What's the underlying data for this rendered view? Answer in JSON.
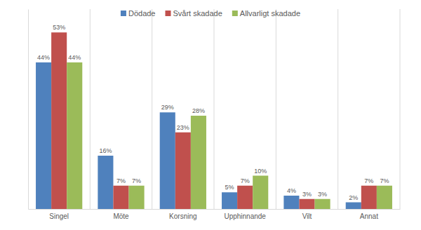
{
  "chart_data": {
    "type": "bar",
    "categories": [
      "Singel",
      "Möte",
      "Korsning",
      "Upphinnande",
      "Vilt",
      "Annat"
    ],
    "series": [
      {
        "name": "Dödade",
        "color": "#4f81bd",
        "values": [
          44,
          16,
          29,
          5,
          4,
          2
        ],
        "value_labels": [
          "44%",
          "16%",
          "29%",
          "5%",
          "4%",
          "2%"
        ]
      },
      {
        "name": "Svårt skadade",
        "color": "#c0504d",
        "values": [
          53,
          7,
          23,
          7,
          3,
          7
        ],
        "value_labels": [
          "53%",
          "7%",
          "23%",
          "7%",
          "3%",
          "7%"
        ]
      },
      {
        "name": "Allvarligt skadade",
        "color": "#9bbb59",
        "values": [
          44,
          7,
          28,
          10,
          3,
          7
        ],
        "value_labels": [
          "44%",
          "7%",
          "28%",
          "10%",
          "3%",
          "7%"
        ]
      }
    ],
    "ylim": [
      0,
      60
    ],
    "yticks": [],
    "legend": "top",
    "data_labels": true,
    "tick_labels": "x"
  }
}
